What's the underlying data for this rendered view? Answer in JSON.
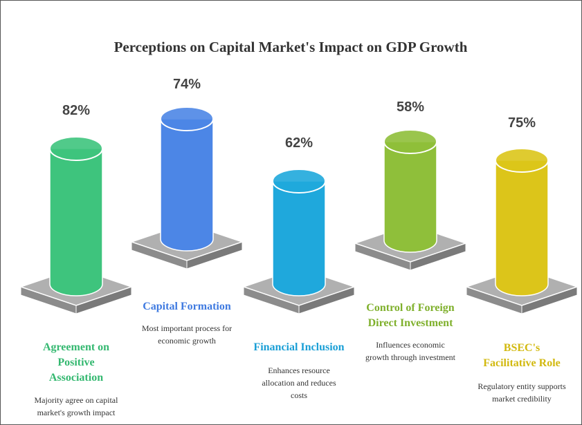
{
  "title": "Perceptions on Capital Market's Impact on GDP Growth",
  "items": [
    {
      "value": "82%",
      "label": [
        "Agreement on",
        "Positive",
        "Association"
      ],
      "description": [
        "Majority agree on capital",
        "market's growth impact"
      ],
      "color": "#3ec47d",
      "text_color": "#34b870"
    },
    {
      "value": "74%",
      "label": [
        "Capital Formation"
      ],
      "description": [
        "Most important process for",
        "economic growth"
      ],
      "color": "#4c86e6",
      "text_color": "#3f7ae0"
    },
    {
      "value": "62%",
      "label": [
        "Financial Inclusion"
      ],
      "description": [
        "Enhances resource",
        "allocation and reduces",
        "costs"
      ],
      "color": "#1fa8dc",
      "text_color": "#1a9fd6"
    },
    {
      "value": "58%",
      "label": [
        "Control of Foreign",
        "Direct Investment"
      ],
      "description": [
        "Influences economic",
        "growth through investment"
      ],
      "color": "#8fbf3a",
      "text_color": "#7fb02c"
    },
    {
      "value": "75%",
      "label": [
        "BSEC's",
        "Facilitative Role"
      ],
      "description": [
        "Regulatory entity supports",
        "market credibility"
      ],
      "color": "#dcc51a",
      "text_color": "#d2b90f"
    }
  ]
}
